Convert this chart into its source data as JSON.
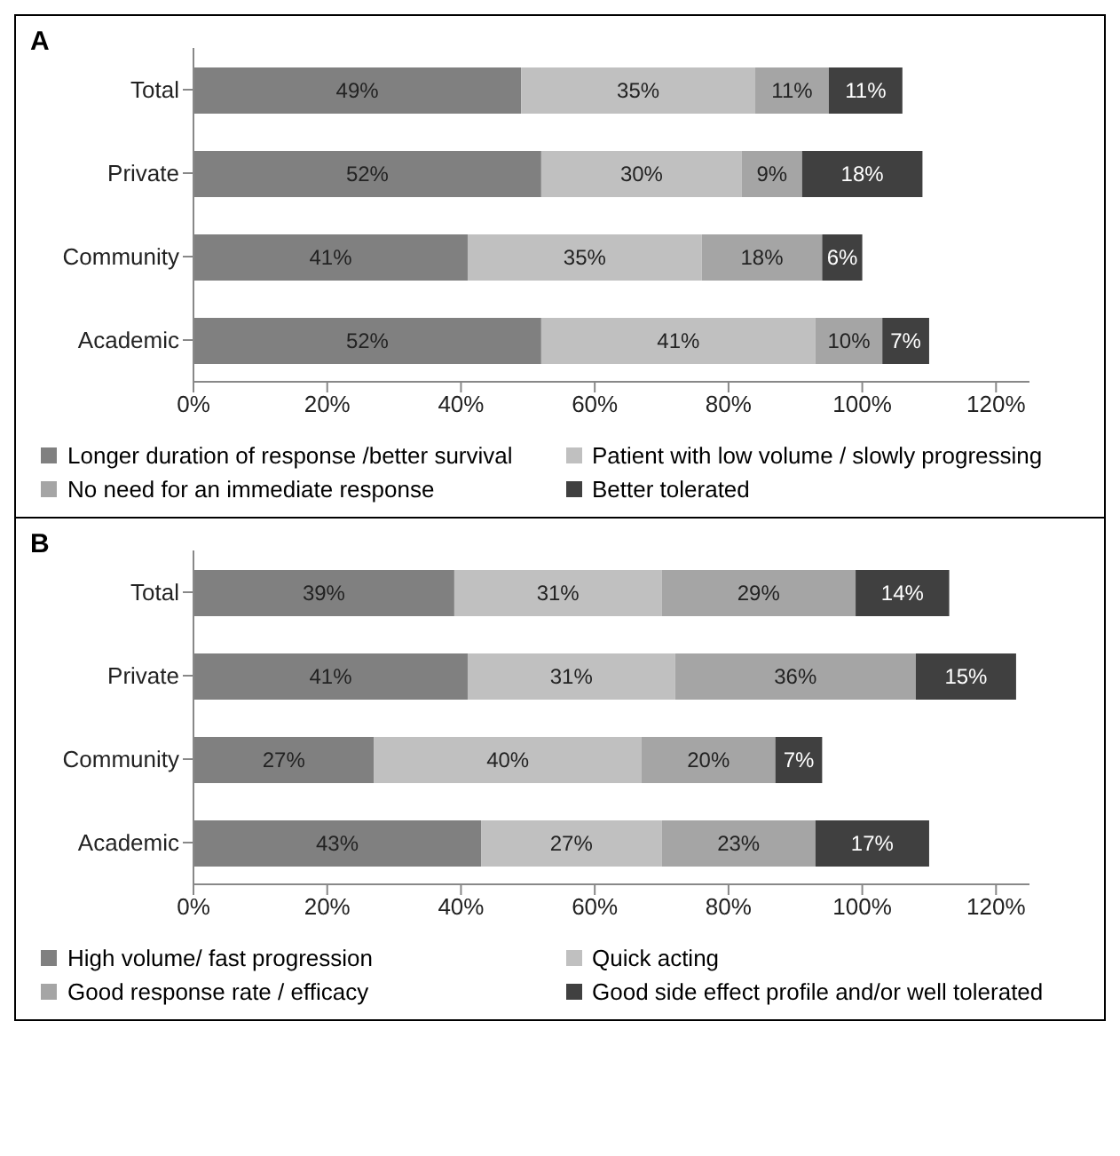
{
  "chart_data": [
    {
      "type": "bar",
      "title": "A",
      "orientation": "horizontal",
      "stacked": true,
      "categories": [
        "Total",
        "Private",
        "Community",
        "Academic"
      ],
      "series": [
        {
          "name": "Longer duration of response /better survival",
          "color": "#808080",
          "values": [
            49,
            52,
            41,
            52
          ],
          "value_labels": [
            "49%",
            "52%",
            "41%",
            "52%"
          ]
        },
        {
          "name": "Patient with low volume / slowly progressing",
          "color": "#c0c0c0",
          "values": [
            35,
            30,
            35,
            41
          ],
          "value_labels": [
            "35%",
            "30%",
            "35%",
            "41%"
          ]
        },
        {
          "name": "No need for an immediate response",
          "color": "#a5a5a5",
          "values": [
            11,
            9,
            18,
            10
          ],
          "value_labels": [
            "11%",
            "9%",
            "18%",
            "10%"
          ]
        },
        {
          "name": "Better tolerated",
          "color": "#404040",
          "values": [
            11,
            18,
            6,
            7
          ],
          "value_labels": [
            "11%",
            "18%",
            "6%",
            "7%"
          ]
        }
      ],
      "xlim": [
        0,
        125
      ],
      "xticks": [
        {
          "value": 0,
          "label": "0%"
        },
        {
          "value": 20,
          "label": "20%"
        },
        {
          "value": 40,
          "label": "40%"
        },
        {
          "value": 60,
          "label": "60%"
        },
        {
          "value": 80,
          "label": "80%"
        },
        {
          "value": 100,
          "label": "100%"
        },
        {
          "value": 120,
          "label": "120%"
        }
      ],
      "legend": "bottom",
      "grid": false
    },
    {
      "type": "bar",
      "title": "B",
      "orientation": "horizontal",
      "stacked": true,
      "categories": [
        "Total",
        "Private",
        "Community",
        "Academic"
      ],
      "series": [
        {
          "name": "High volume/ fast progression",
          "color": "#808080",
          "values": [
            39,
            41,
            27,
            43
          ],
          "value_labels": [
            "39%",
            "41%",
            "27%",
            "43%"
          ]
        },
        {
          "name": "Quick acting",
          "color": "#c0c0c0",
          "values": [
            31,
            31,
            40,
            27
          ],
          "value_labels": [
            "31%",
            "31%",
            "40%",
            "27%"
          ]
        },
        {
          "name": "Good response rate / efficacy",
          "color": "#a5a5a5",
          "values": [
            29,
            36,
            20,
            23
          ],
          "value_labels": [
            "29%",
            "36%",
            "20%",
            "23%"
          ]
        },
        {
          "name": "Good side effect profile and/or well tolerated",
          "color": "#404040",
          "values": [
            14,
            15,
            7,
            17
          ],
          "value_labels": [
            "14%",
            "15%",
            "7%",
            "17%"
          ]
        }
      ],
      "xlim": [
        0,
        125
      ],
      "xticks": [
        {
          "value": 0,
          "label": "0%"
        },
        {
          "value": 20,
          "label": "20%"
        },
        {
          "value": 40,
          "label": "40%"
        },
        {
          "value": 60,
          "label": "60%"
        },
        {
          "value": 80,
          "label": "80%"
        },
        {
          "value": 100,
          "label": "100%"
        },
        {
          "value": 120,
          "label": "120%"
        }
      ],
      "legend": "bottom",
      "grid": false
    }
  ]
}
